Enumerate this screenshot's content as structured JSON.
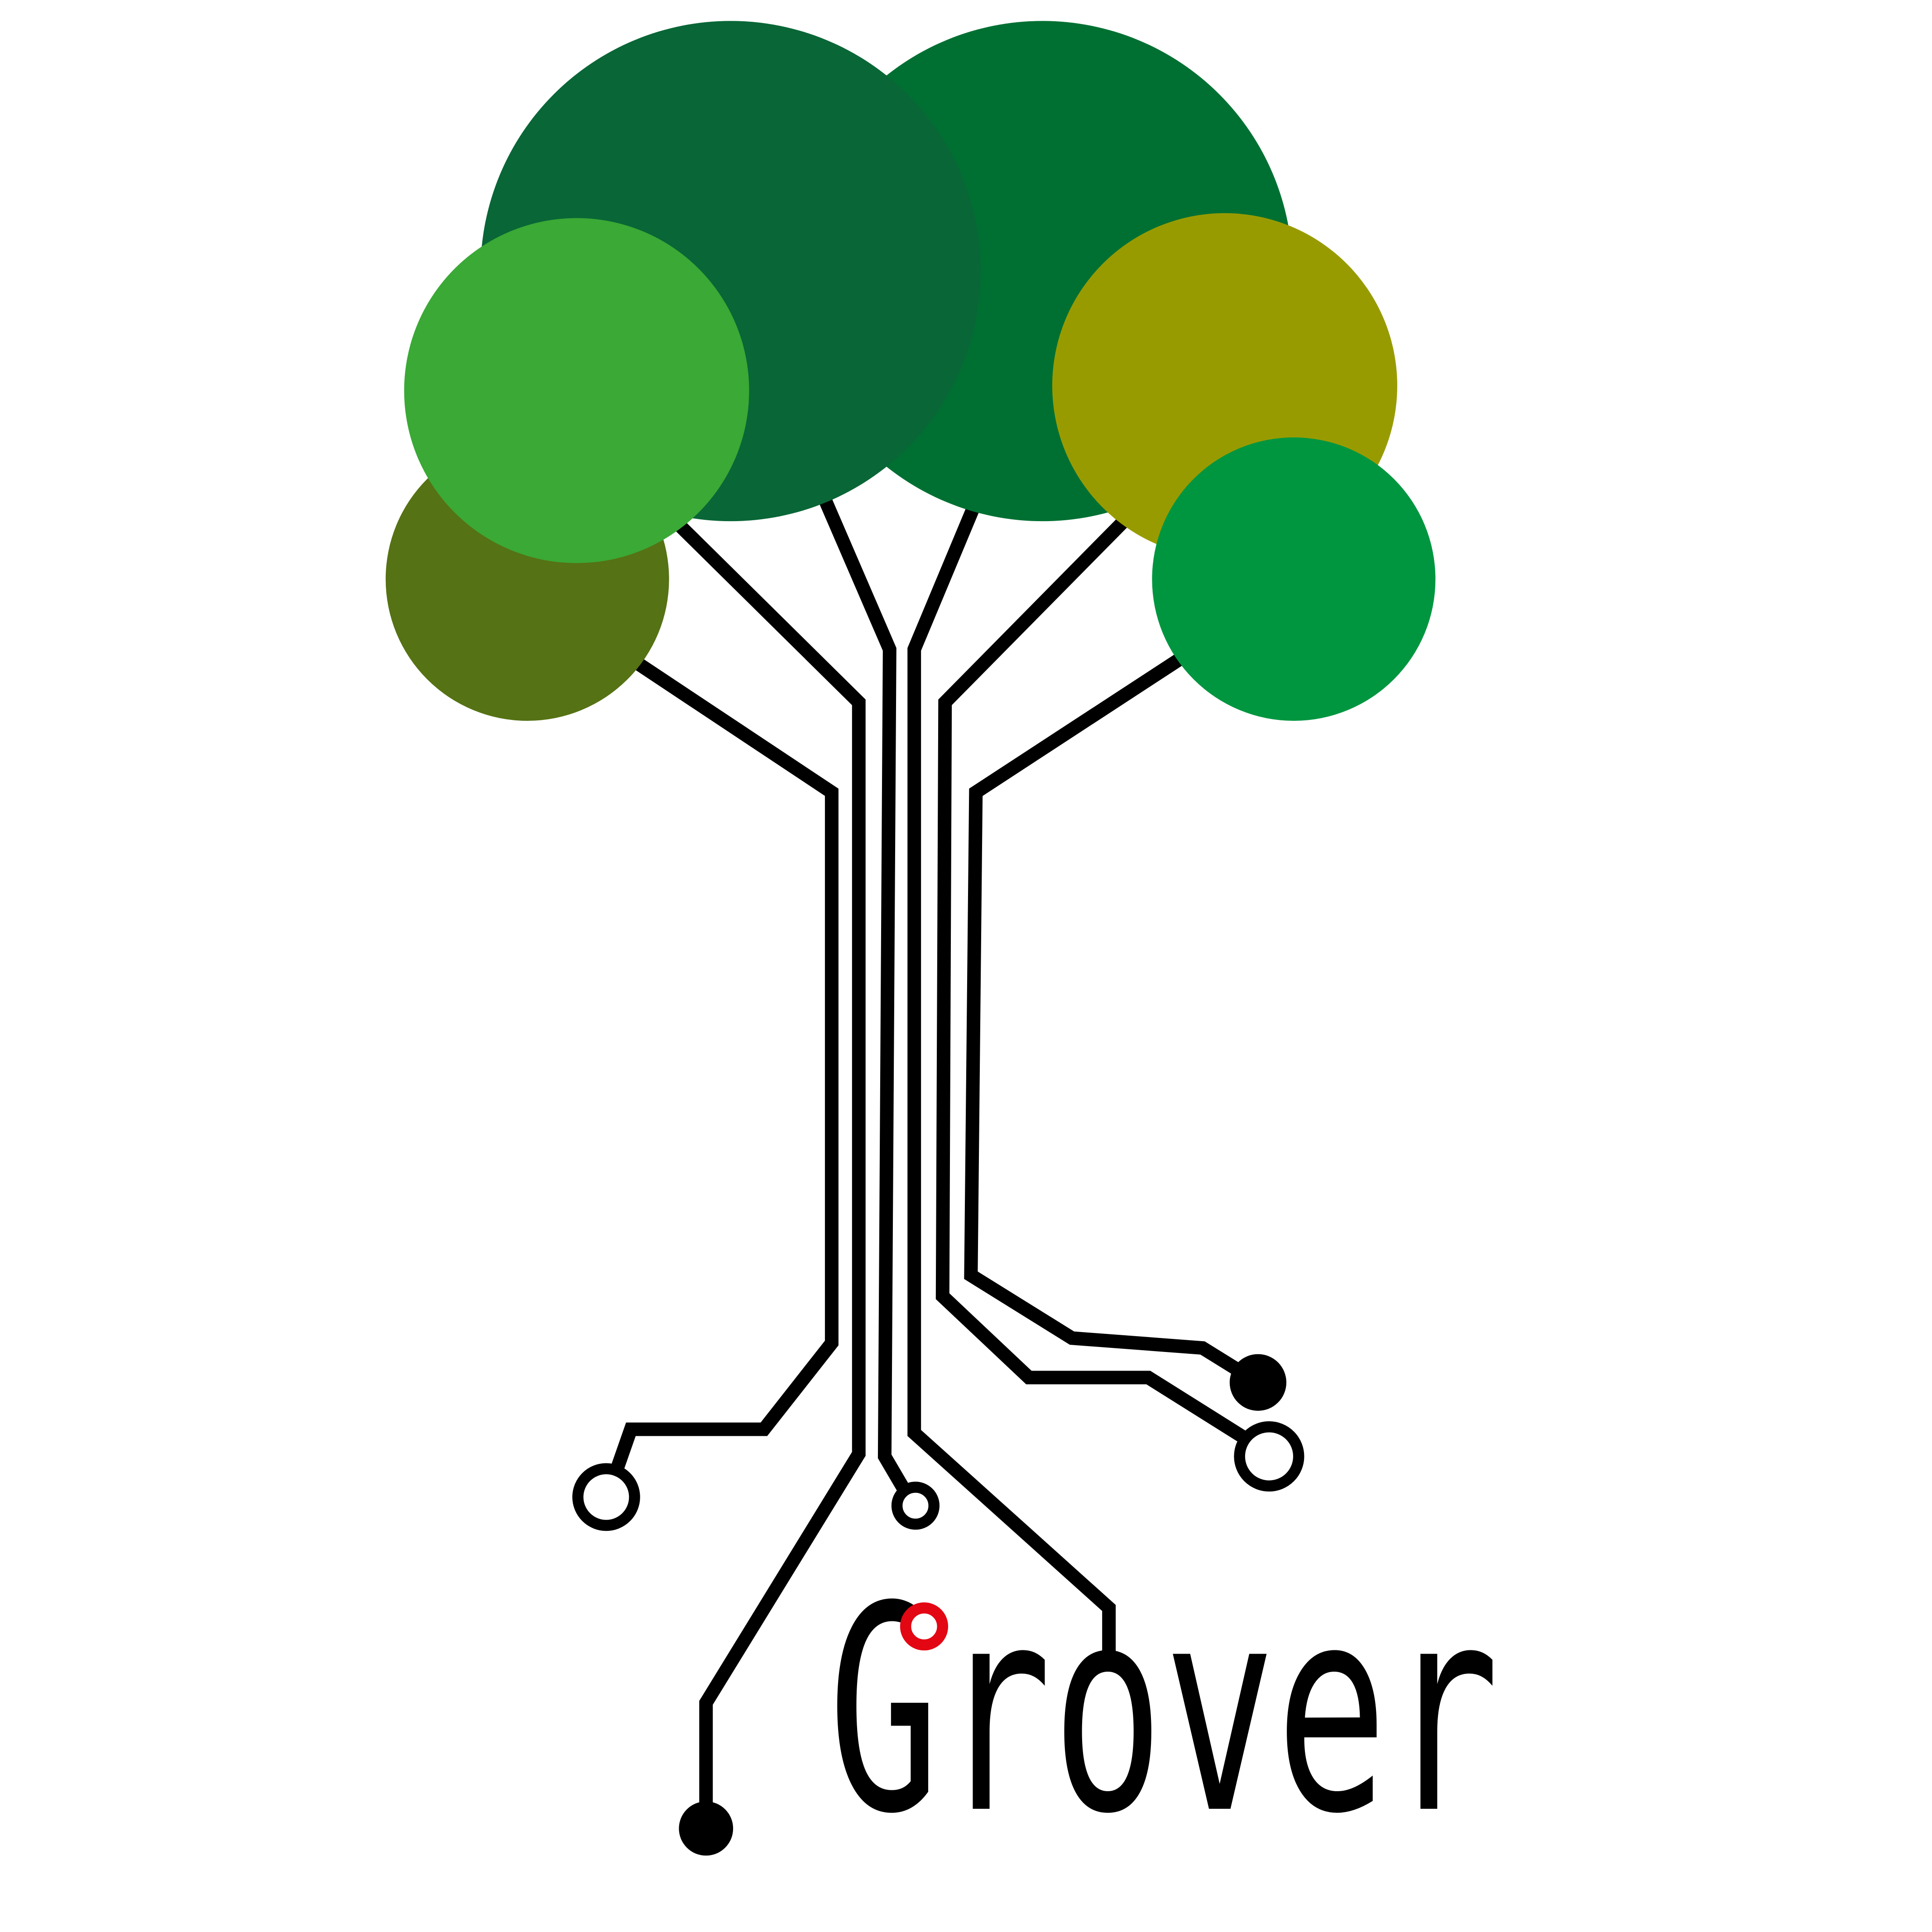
{
  "logo": {
    "text": "Grover"
  }
}
